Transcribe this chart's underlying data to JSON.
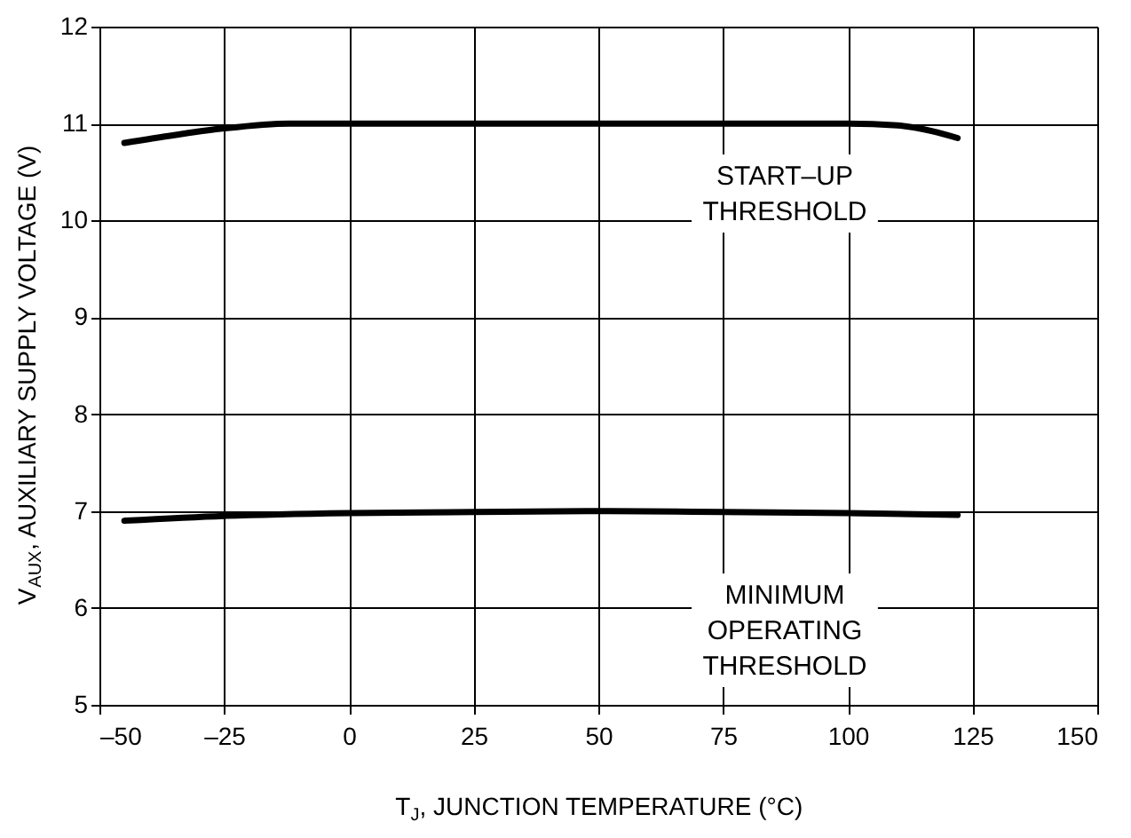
{
  "chart_data": {
    "type": "line",
    "xlabel": "T$_{J}$, JUNCTION TEMPERATURE (°C)",
    "ylabel": "V$_{AUX}$, AUXILIARY SUPPLY VOLTAGE (V)",
    "xlim": [
      -50,
      150
    ],
    "xticks": [
      {
        "value": -50,
        "label": "–50"
      },
      {
        "value": -25,
        "label": "–25"
      },
      0,
      25,
      50,
      75,
      100,
      125,
      150
    ],
    "ylim": [
      5,
      12
    ],
    "yticks": [
      5,
      6,
      7,
      8,
      9,
      10,
      11,
      12
    ],
    "grid": true,
    "marker": "none",
    "line_style": "solid",
    "series": [
      {
        "name": "START–UP\nTHRESHOLD",
        "color": "#000000",
        "x": [
          -45,
          -35,
          -25,
          -12,
          0,
          25,
          50,
          75,
          100,
          110,
          117,
          122
        ],
        "values": [
          10.8,
          10.88,
          10.95,
          11.0,
          11.0,
          11.0,
          11.0,
          11.0,
          11.0,
          10.98,
          10.92,
          10.85
        ]
      },
      {
        "name": "MINIMUM\nOPERATING\nTHRESHOLD",
        "color": "#000000",
        "x": [
          -45,
          -25,
          0,
          25,
          50,
          75,
          100,
          122
        ],
        "values": [
          6.9,
          6.95,
          6.98,
          6.99,
          7.0,
          6.99,
          6.98,
          6.96
        ]
      }
    ]
  }
}
